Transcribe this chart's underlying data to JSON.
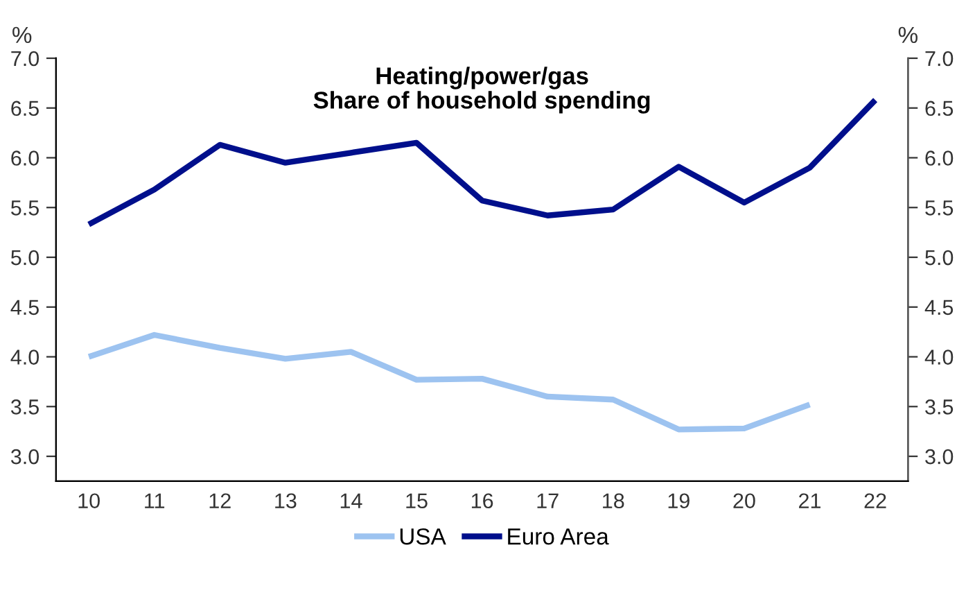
{
  "chart_data": {
    "type": "line",
    "title": "Heating/power/gas\nShare of household spending",
    "ylabel": "%",
    "y2label": "%",
    "categories": [
      "10",
      "11",
      "12",
      "13",
      "14",
      "15",
      "16",
      "17",
      "18",
      "19",
      "20",
      "21",
      "22"
    ],
    "series": [
      {
        "name": "USA",
        "color": "#9dc3f0",
        "values": [
          4.0,
          4.22,
          4.09,
          3.98,
          4.05,
          3.77,
          3.78,
          3.6,
          3.57,
          3.27,
          3.28,
          3.52,
          null
        ]
      },
      {
        "name": "Euro Area",
        "color": "#000f8c",
        "values": [
          5.33,
          5.68,
          6.13,
          5.95,
          6.05,
          6.15,
          5.57,
          5.42,
          5.48,
          5.91,
          5.55,
          5.9,
          6.58
        ]
      }
    ],
    "ylim": [
      2.75,
      7.0
    ],
    "yticks": [
      {
        "value": 3.0,
        "label": "3.0"
      },
      {
        "value": 3.5,
        "label": "3.5"
      },
      {
        "value": 4.0,
        "label": "4.0"
      },
      {
        "value": 4.5,
        "label": "4.5"
      },
      {
        "value": 5.0,
        "label": "5.0"
      },
      {
        "value": 5.5,
        "label": "5.5"
      },
      {
        "value": 6.0,
        "label": "6.0"
      },
      {
        "value": 6.5,
        "label": "6.5"
      },
      {
        "value": 7.0,
        "label": "7.0"
      }
    ],
    "y2lim": [
      2.75,
      7.0
    ],
    "y2ticks": [
      {
        "value": 3.0,
        "label": "3.0"
      },
      {
        "value": 3.5,
        "label": "3.5"
      },
      {
        "value": 4.0,
        "label": "4.0"
      },
      {
        "value": 4.5,
        "label": "4.5"
      },
      {
        "value": 5.0,
        "label": "5.0"
      },
      {
        "value": 5.5,
        "label": "5.5"
      },
      {
        "value": 6.0,
        "label": "6.0"
      },
      {
        "value": 6.5,
        "label": "6.5"
      },
      {
        "value": 7.0,
        "label": "7.0"
      }
    ],
    "grid": false,
    "legend": "bottom",
    "marker": "none",
    "line_style": "solid"
  }
}
